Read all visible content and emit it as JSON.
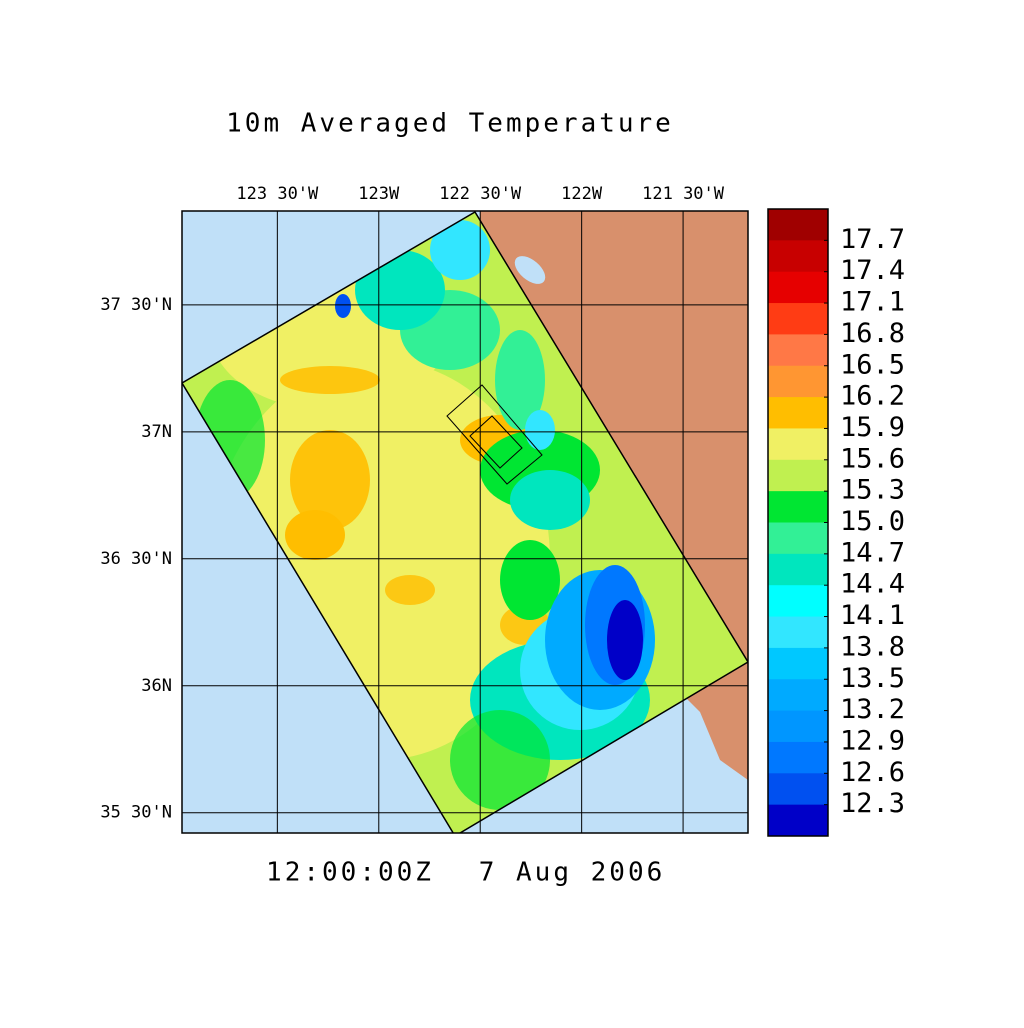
{
  "title": "10m Averaged Temperature",
  "time": "12:00:00Z",
  "date": "7 Aug 2006",
  "lon_range": [
    -123.97,
    -121.18
  ],
  "lat_range": [
    35.42,
    37.87
  ],
  "lon_labels": [
    {
      "value": -123.5,
      "label": "123 30'W"
    },
    {
      "value": -123,
      "label": "123W"
    },
    {
      "value": -122.5,
      "label": "122 30'W"
    },
    {
      "value": -122,
      "label": "122W"
    },
    {
      "value": -121.5,
      "label": "121 30'W"
    }
  ],
  "lat_labels": [
    {
      "value": 37.5,
      "label": "37 30'N"
    },
    {
      "value": 37,
      "label": "37N"
    },
    {
      "value": 36.5,
      "label": "36 30'N"
    },
    {
      "value": 36,
      "label": "36N"
    },
    {
      "value": 35.5,
      "label": "35 30'N"
    }
  ],
  "colorbar": {
    "levels": [
      {
        "value": 17.7,
        "label": "17.7"
      },
      {
        "value": 17.4,
        "label": "17.4"
      },
      {
        "value": 17.1,
        "label": "17.1"
      },
      {
        "value": 16.8,
        "label": "16.8"
      },
      {
        "value": 16.5,
        "label": "16.5"
      },
      {
        "value": 16.2,
        "label": "16.2"
      },
      {
        "value": 15.9,
        "label": "15.9"
      },
      {
        "value": 15.6,
        "label": "15.6"
      },
      {
        "value": 15.3,
        "label": "15.3"
      },
      {
        "value": 15,
        "label": "15.0"
      },
      {
        "value": 14.7,
        "label": "14.7"
      },
      {
        "value": 14.4,
        "label": "14.4"
      },
      {
        "value": 14.1,
        "label": "14.1"
      },
      {
        "value": 13.8,
        "label": "13.8"
      },
      {
        "value": 13.5,
        "label": "13.5"
      },
      {
        "value": 13.2,
        "label": "13.2"
      },
      {
        "value": 12.9,
        "label": "12.9"
      },
      {
        "value": 12.6,
        "label": "12.6"
      },
      {
        "value": 12.3,
        "label": "12.3"
      }
    ],
    "colors": [
      "#a00000",
      "#c80000",
      "#e60000",
      "#ff3c14",
      "#ff7846",
      "#ff9632",
      "#ffbe00",
      "#f0f064",
      "#c0f050",
      "#00e632",
      "#32f096",
      "#00e6be",
      "#00ffff",
      "#32e6ff",
      "#00c8ff",
      "#00aaff",
      "#0096ff",
      "#0078ff",
      "#0050f0",
      "#0000c8"
    ]
  }
}
